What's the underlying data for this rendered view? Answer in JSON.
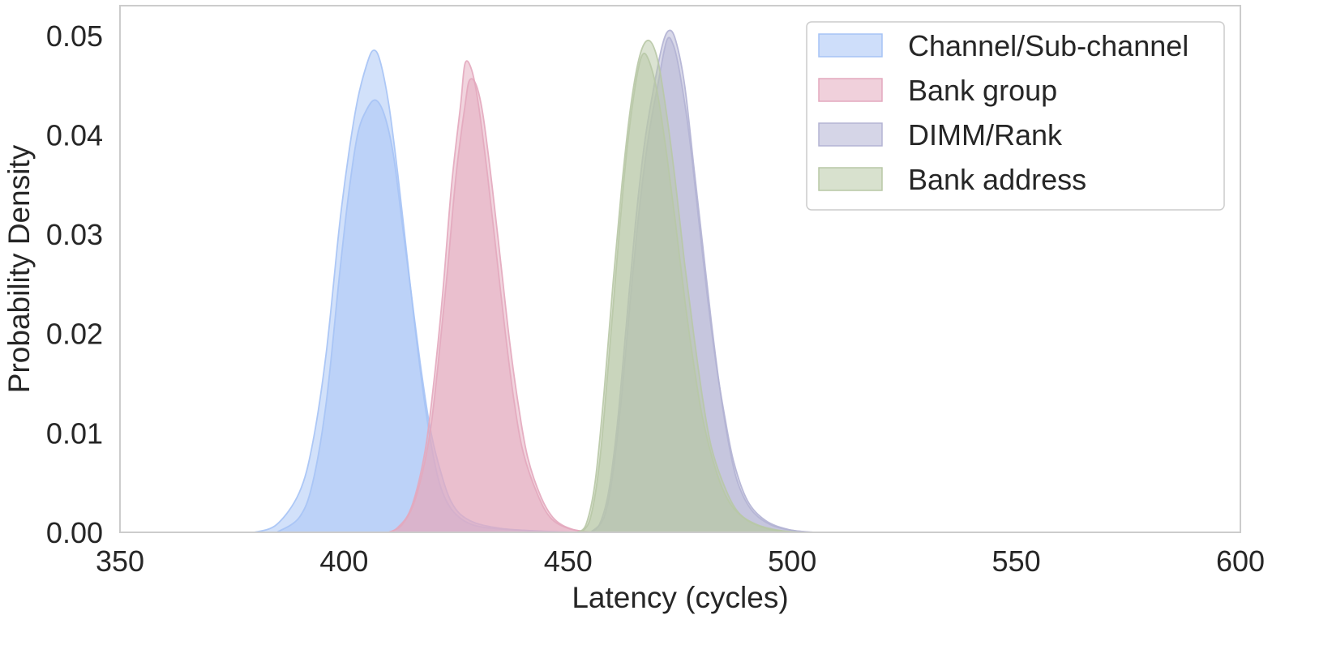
{
  "chart_data": {
    "type": "area",
    "title": "",
    "xlabel": "Latency (cycles)",
    "ylabel": "Probability Density",
    "xlim": [
      350,
      600
    ],
    "ylim": [
      0,
      0.053
    ],
    "xticks": [
      350,
      400,
      450,
      500,
      550,
      600
    ],
    "xtick_labels": [
      "350",
      "400",
      "450",
      "500",
      "550",
      "600"
    ],
    "yticks": [
      0,
      0.01,
      0.02,
      0.03,
      0.04,
      0.05
    ],
    "ytick_labels": [
      "0.00",
      "0.01",
      "0.02",
      "0.03",
      "0.04",
      "0.05"
    ],
    "grid": false,
    "legend_position": "top-right",
    "series": [
      {
        "name": "Channel/Sub-channel",
        "color": "#a6c3f5",
        "curves": [
          [
            [
              380,
              0
            ],
            [
              385,
              0.0008
            ],
            [
              390,
              0.004
            ],
            [
              393,
              0.009
            ],
            [
              396,
              0.018
            ],
            [
              399,
              0.031
            ],
            [
              401,
              0.038
            ],
            [
              403,
              0.0435
            ],
            [
              405,
              0.047
            ],
            [
              406.5,
              0.0485
            ],
            [
              408,
              0.0475
            ],
            [
              410,
              0.043
            ],
            [
              412,
              0.036
            ],
            [
              414,
              0.028
            ],
            [
              416,
              0.02
            ],
            [
              418,
              0.013
            ],
            [
              420,
              0.0075
            ],
            [
              422,
              0.004
            ],
            [
              425,
              0.0018
            ],
            [
              430,
              0.0006
            ],
            [
              440,
              0.0002
            ],
            [
              450,
              0
            ]
          ],
          [
            [
              385,
              0
            ],
            [
              390,
              0.0015
            ],
            [
              393,
              0.005
            ],
            [
              396,
              0.013
            ],
            [
              399,
              0.026
            ],
            [
              401,
              0.034
            ],
            [
              403,
              0.04
            ],
            [
              405,
              0.0425
            ],
            [
              407,
              0.0435
            ],
            [
              409,
              0.042
            ],
            [
              411,
              0.038
            ],
            [
              413,
              0.031
            ],
            [
              415,
              0.024
            ],
            [
              417,
              0.017
            ],
            [
              419,
              0.011
            ],
            [
              421,
              0.007
            ],
            [
              424,
              0.003
            ],
            [
              428,
              0.0012
            ],
            [
              435,
              0.0004
            ],
            [
              445,
              0.0001
            ],
            [
              455,
              0
            ]
          ]
        ]
      },
      {
        "name": "Bank group",
        "color": "#e3a9be",
        "curves": [
          [
            [
              410,
              0
            ],
            [
              412,
              0.0005
            ],
            [
              415,
              0.0025
            ],
            [
              418,
              0.008
            ],
            [
              420,
              0.015
            ],
            [
              422,
              0.024
            ],
            [
              424,
              0.035
            ],
            [
              426,
              0.043
            ],
            [
              427,
              0.0472
            ],
            [
              428.5,
              0.0465
            ],
            [
              430,
              0.043
            ],
            [
              432,
              0.036
            ],
            [
              434,
              0.028
            ],
            [
              436,
              0.02
            ],
            [
              438,
              0.013
            ],
            [
              440,
              0.008
            ],
            [
              443,
              0.004
            ],
            [
              446,
              0.0015
            ],
            [
              450,
              0.0004
            ],
            [
              455,
              0
            ]
          ],
          [
            [
              410,
              0
            ],
            [
              413,
              0.0008
            ],
            [
              416,
              0.0035
            ],
            [
              419,
              0.0095
            ],
            [
              421,
              0.017
            ],
            [
              423,
              0.026
            ],
            [
              425,
              0.036
            ],
            [
              427,
              0.043
            ],
            [
              428,
              0.0455
            ],
            [
              429.5,
              0.045
            ],
            [
              431,
              0.042
            ],
            [
              433,
              0.035
            ],
            [
              435,
              0.027
            ],
            [
              437,
              0.019
            ],
            [
              439,
              0.0125
            ],
            [
              441,
              0.0075
            ],
            [
              444,
              0.0035
            ],
            [
              447,
              0.0013
            ],
            [
              451,
              0.0003
            ],
            [
              456,
              0
            ]
          ]
        ]
      },
      {
        "name": "DIMM/Rank",
        "color": "#b3b3d4",
        "curves": [
          [
            [
              455,
              0
            ],
            [
              457,
              0.0008
            ],
            [
              459,
              0.004
            ],
            [
              461,
              0.011
            ],
            [
              463,
              0.021
            ],
            [
              465,
              0.031
            ],
            [
              467,
              0.039
            ],
            [
              469,
              0.0445
            ],
            [
              471,
              0.049
            ],
            [
              472.5,
              0.0505
            ],
            [
              474,
              0.0495
            ],
            [
              476,
              0.045
            ],
            [
              478,
              0.037
            ],
            [
              480,
              0.029
            ],
            [
              482,
              0.021
            ],
            [
              484,
              0.014
            ],
            [
              486,
              0.0085
            ],
            [
              488,
              0.0048
            ],
            [
              491,
              0.0022
            ],
            [
              495,
              0.0008
            ],
            [
              500,
              0.0002
            ],
            [
              505,
              0
            ]
          ],
          [
            [
              455,
              0
            ],
            [
              458,
              0.0015
            ],
            [
              460,
              0.006
            ],
            [
              462,
              0.014
            ],
            [
              464,
              0.024
            ],
            [
              466,
              0.033
            ],
            [
              468,
              0.04
            ],
            [
              470,
              0.045
            ],
            [
              472,
              0.0495
            ],
            [
              473.5,
              0.049
            ],
            [
              475,
              0.046
            ],
            [
              477,
              0.04
            ],
            [
              479,
              0.032
            ],
            [
              481,
              0.024
            ],
            [
              483,
              0.017
            ],
            [
              485,
              0.0115
            ],
            [
              487,
              0.007
            ],
            [
              490,
              0.0032
            ],
            [
              494,
              0.0012
            ],
            [
              499,
              0.0003
            ],
            [
              504,
              0
            ]
          ]
        ]
      },
      {
        "name": "Bank address",
        "color": "#b8c8a6",
        "curves": [
          [
            [
              452,
              0
            ],
            [
              454,
              0.0008
            ],
            [
              456,
              0.005
            ],
            [
              458,
              0.014
            ],
            [
              460,
              0.025
            ],
            [
              462,
              0.035
            ],
            [
              464,
              0.043
            ],
            [
              466,
              0.048
            ],
            [
              468,
              0.0495
            ],
            [
              470,
              0.0475
            ],
            [
              472,
              0.042
            ],
            [
              474,
              0.035
            ],
            [
              476,
              0.027
            ],
            [
              478,
              0.02
            ],
            [
              480,
              0.0135
            ],
            [
              482,
              0.0085
            ],
            [
              485,
              0.0045
            ],
            [
              488,
              0.002
            ],
            [
              492,
              0.0008
            ],
            [
              497,
              0.0002
            ],
            [
              502,
              0
            ]
          ],
          [
            [
              453,
              0
            ],
            [
              455,
              0.0015
            ],
            [
              457,
              0.007
            ],
            [
              459,
              0.017
            ],
            [
              461,
              0.028
            ],
            [
              463,
              0.038
            ],
            [
              465,
              0.045
            ],
            [
              466.5,
              0.048
            ],
            [
              468,
              0.0475
            ],
            [
              470,
              0.044
            ],
            [
              472,
              0.038
            ],
            [
              474,
              0.031
            ],
            [
              476,
              0.0235
            ],
            [
              478,
              0.017
            ],
            [
              480,
              0.0115
            ],
            [
              483,
              0.0062
            ],
            [
              486,
              0.003
            ],
            [
              490,
              0.0012
            ],
            [
              495,
              0.0003
            ],
            [
              500,
              0
            ]
          ]
        ]
      }
    ]
  }
}
